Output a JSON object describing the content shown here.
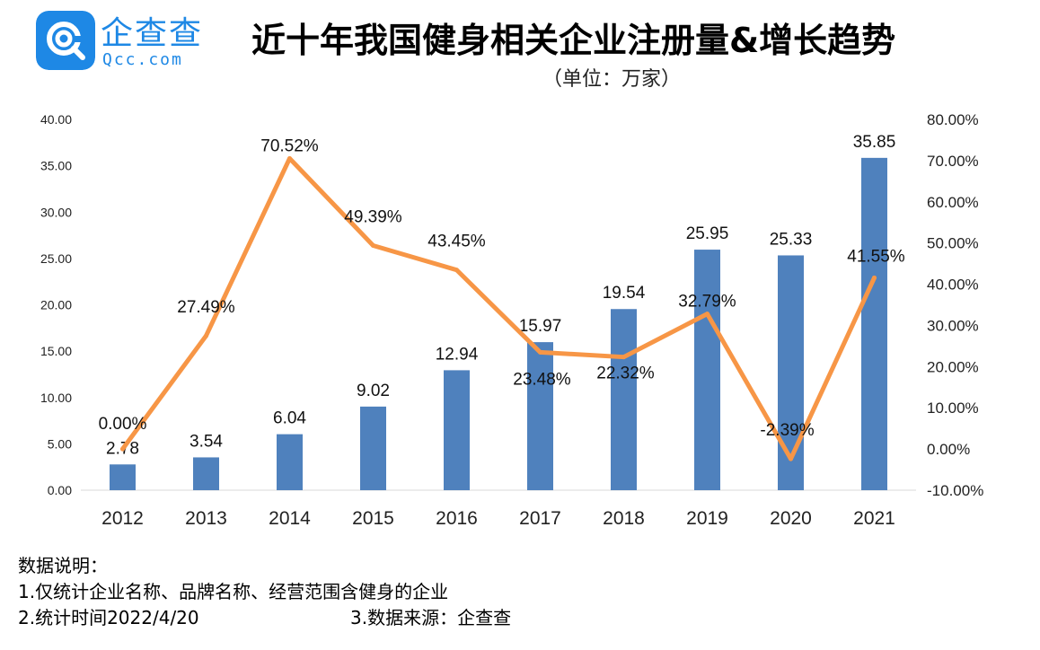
{
  "brand": {
    "name_cn": "企查查",
    "name_en": "Qcc.com"
  },
  "header": {
    "title": "近十年我国健身相关企业注册量&增长趋势",
    "unit": "（单位：万家）"
  },
  "chart_data": {
    "type": "bar",
    "categories": [
      "2012",
      "2013",
      "2014",
      "2015",
      "2016",
      "2017",
      "2018",
      "2019",
      "2020",
      "2021"
    ],
    "series": [
      {
        "type": "bar",
        "axis": "left",
        "values": [
          2.78,
          3.54,
          6.04,
          9.02,
          12.94,
          15.97,
          19.54,
          25.95,
          25.33,
          35.85
        ],
        "labels": [
          "2.78",
          "3.54",
          "6.04",
          "9.02",
          "12.94",
          "15.97",
          "19.54",
          "25.95",
          "25.33",
          "35.85"
        ],
        "color": "#4f81bd"
      },
      {
        "type": "line",
        "axis": "right",
        "values": [
          0.0,
          27.49,
          70.52,
          49.39,
          43.45,
          23.48,
          22.32,
          32.79,
          -2.39,
          41.55
        ],
        "labels": [
          "0.00%",
          "27.49%",
          "70.52%",
          "49.39%",
          "43.45%",
          "23.48%",
          "22.32%",
          "32.79%",
          "-2.39%",
          "41.55%"
        ],
        "color": "#f79646"
      }
    ],
    "y_left": {
      "min": 0,
      "max": 40,
      "ticks": [
        "0.00",
        "5.00",
        "10.00",
        "15.00",
        "20.00",
        "25.00",
        "30.00",
        "35.00",
        "40.00"
      ]
    },
    "y_right": {
      "min": -10,
      "max": 80,
      "ticks": [
        "-10.00%",
        "0.00%",
        "10.00%",
        "20.00%",
        "30.00%",
        "40.00%",
        "50.00%",
        "60.00%",
        "70.00%",
        "80.00%"
      ]
    },
    "grid": false,
    "legend": "none"
  },
  "notes": {
    "heading": "数据说明：",
    "line1": "1.仅统计企业名称、品牌名称、经营范围含健身的企业",
    "line2": "2.统计时间2022/4/20",
    "source": "3.数据来源：企查查"
  }
}
